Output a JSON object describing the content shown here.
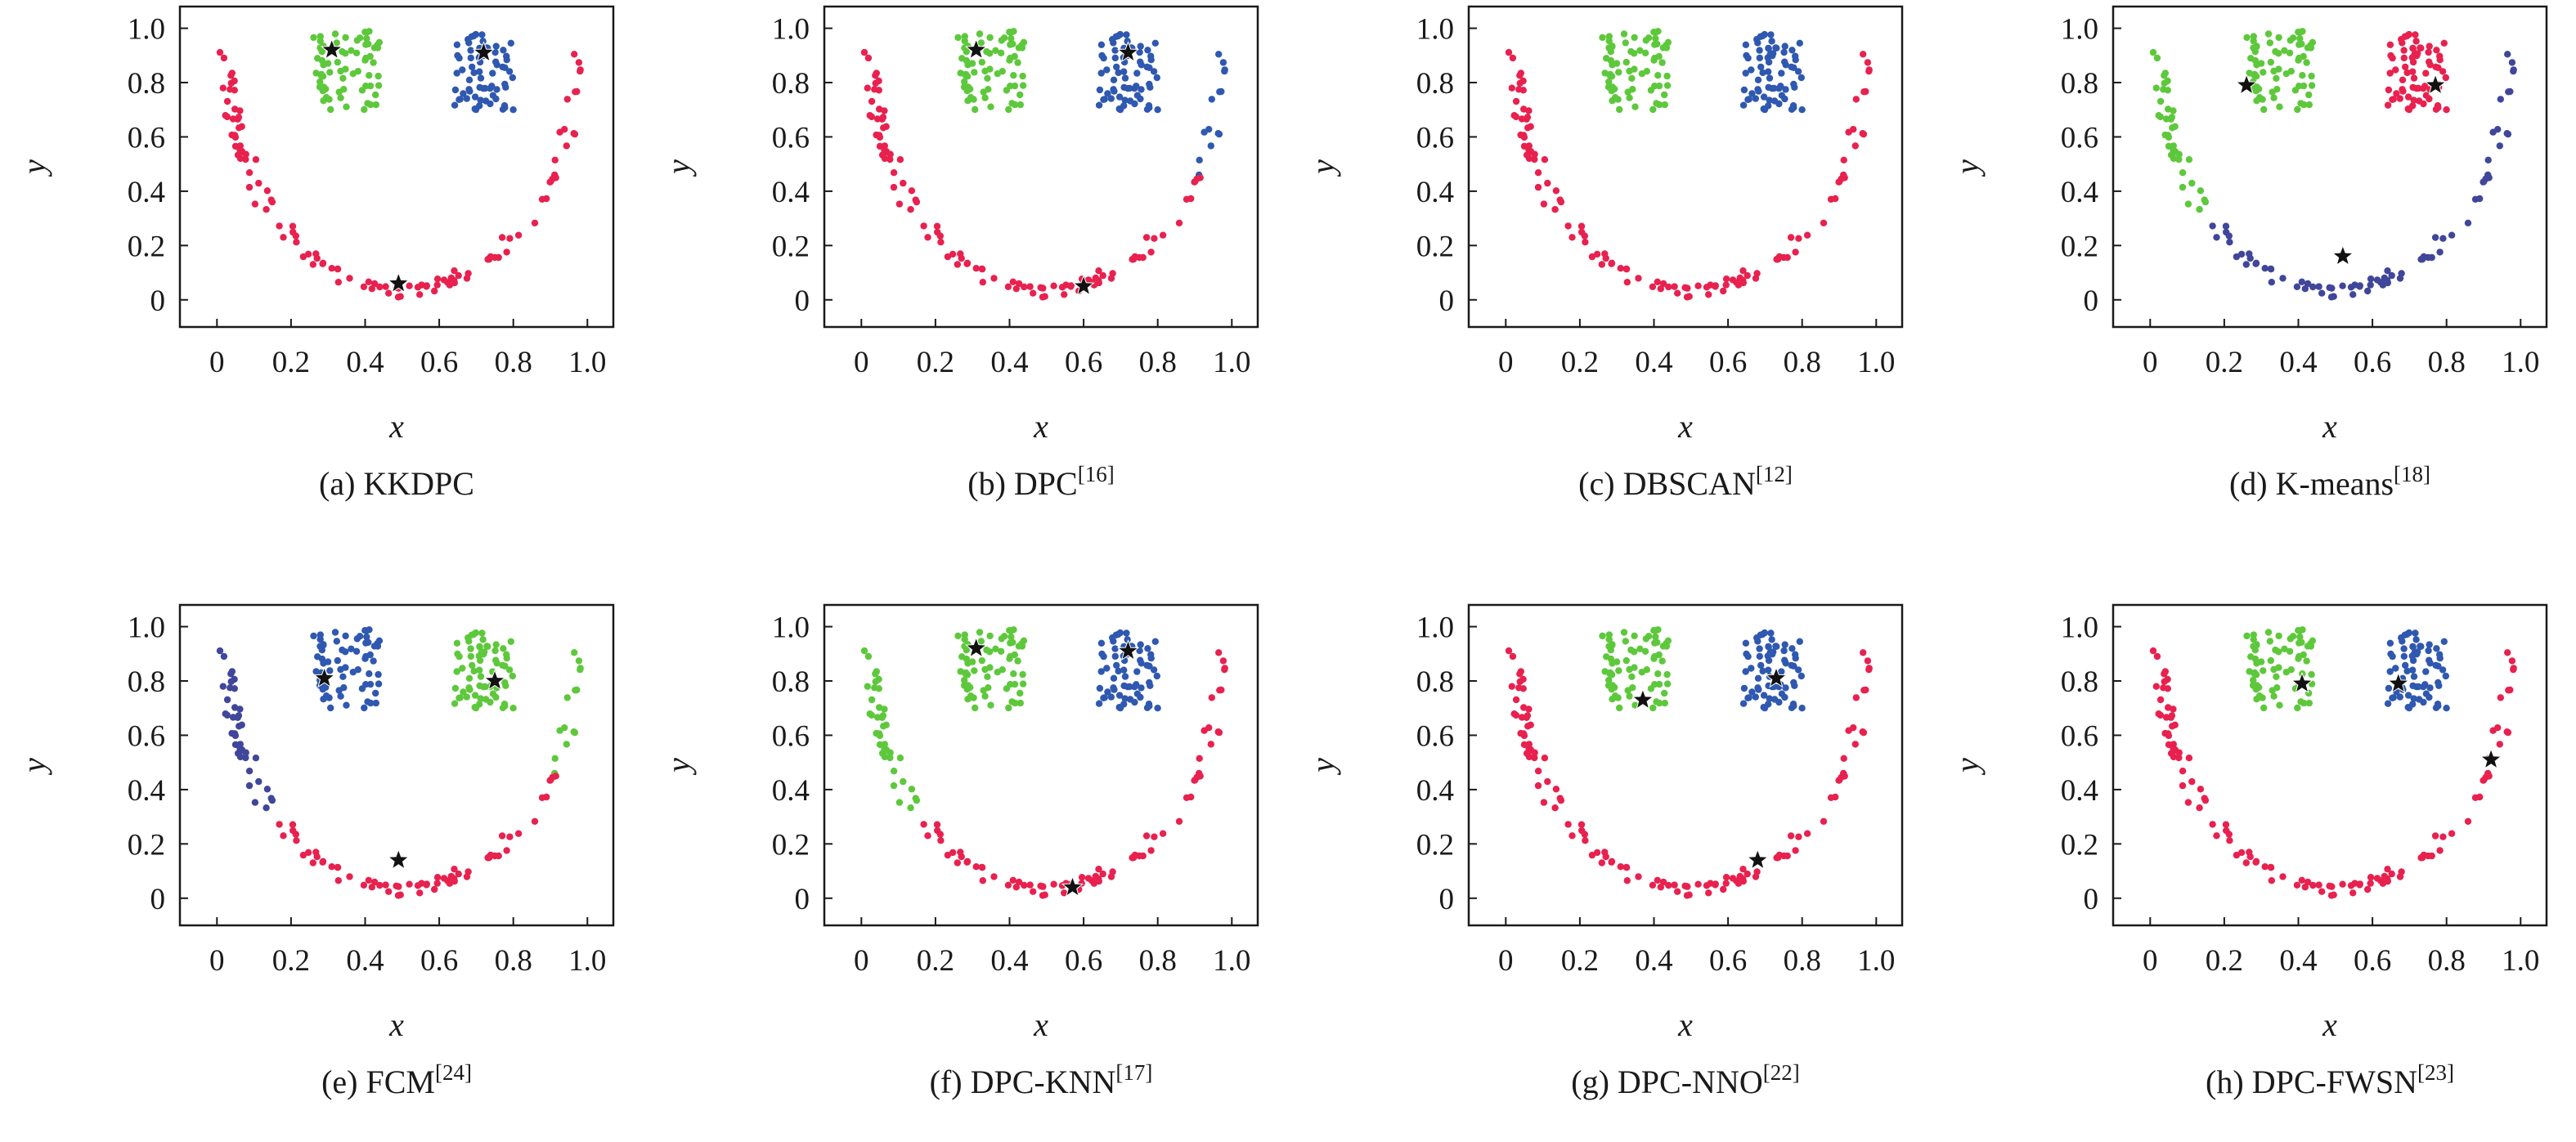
{
  "figure": {
    "axis": {
      "xlabel": "x",
      "ylabel": "y",
      "xticks": [
        "0",
        "0.2",
        "0.4",
        "0.6",
        "0.8",
        "1.0"
      ],
      "yticks": [
        "0",
        "0.2",
        "0.4",
        "0.6",
        "0.8",
        "1.0"
      ],
      "xlim": [
        -0.1,
        1.07
      ],
      "ylim": [
        -0.1,
        1.08
      ],
      "grid": false
    },
    "cluster_colors": {
      "red": "#e8214f",
      "green": "#5ec83c",
      "blue": "#2f58b0",
      "navy": "#40469a",
      "star": "#111111"
    }
  },
  "chart_data": [
    {
      "type": "scatter",
      "caption": "(a) KKDPC",
      "caption_main": "(a) KKDPC",
      "caption_ref": "",
      "xlabel": "x",
      "ylabel": "y",
      "xlim": [
        -0.1,
        1.07
      ],
      "ylim": [
        -0.1,
        1.08
      ],
      "clusters": {
        "smile": "red",
        "left_eye": "green",
        "right_eye": "blue"
      },
      "centers": [
        [
          0.31,
          0.92
        ],
        [
          0.72,
          0.91
        ],
        [
          0.49,
          0.06
        ]
      ]
    },
    {
      "type": "scatter",
      "caption": "(b) DPC[16]",
      "caption_main": "(b) DPC",
      "caption_ref": "[16]",
      "xlabel": "x",
      "ylabel": "y",
      "xlim": [
        -0.1,
        1.07
      ],
      "ylim": [
        -0.1,
        1.08
      ],
      "clusters": {
        "smile": "red",
        "smile_right_arm": "blue",
        "left_eye": "green",
        "right_eye": "blue"
      },
      "centers": [
        [
          0.31,
          0.92
        ],
        [
          0.72,
          0.91
        ],
        [
          0.6,
          0.05
        ]
      ]
    },
    {
      "type": "scatter",
      "caption": "(c) DBSCAN[12]",
      "caption_main": "(c) DBSCAN",
      "caption_ref": "[12]",
      "xlabel": "x",
      "ylabel": "y",
      "xlim": [
        -0.1,
        1.07
      ],
      "ylim": [
        -0.1,
        1.08
      ],
      "clusters": {
        "smile": "red",
        "left_eye": "green",
        "right_eye": "blue"
      },
      "centers": []
    },
    {
      "type": "scatter",
      "caption": "(d) K-means[18]",
      "caption_main": "(d) K-means",
      "caption_ref": "[18]",
      "xlabel": "x",
      "ylabel": "y",
      "xlim": [
        -0.1,
        1.07
      ],
      "ylim": [
        -0.1,
        1.08
      ],
      "clusters": {
        "smile_bottom": "navy",
        "smile_left_arm": "green",
        "left_eye": "green",
        "right_eye": "red"
      },
      "centers": [
        [
          0.26,
          0.79
        ],
        [
          0.77,
          0.79
        ],
        [
          0.52,
          0.16
        ]
      ]
    },
    {
      "type": "scatter",
      "caption": "(e) FCM[24]",
      "caption_main": "(e) FCM",
      "caption_ref": "[24]",
      "xlabel": "x",
      "ylabel": "y",
      "xlim": [
        -0.1,
        1.07
      ],
      "ylim": [
        -0.1,
        1.08
      ],
      "clusters": {
        "smile": "red",
        "smile_left_arm": "navy",
        "smile_right_arm": "green",
        "left_eye": "blue",
        "right_eye": "green"
      },
      "centers": [
        [
          0.29,
          0.81
        ],
        [
          0.75,
          0.8
        ],
        [
          0.49,
          0.14
        ]
      ]
    },
    {
      "type": "scatter",
      "caption": "(f) DPC-KNN[17]",
      "caption_main": "(f) DPC-KNN",
      "caption_ref": "[17]",
      "xlabel": "x",
      "ylabel": "y",
      "xlim": [
        -0.1,
        1.07
      ],
      "ylim": [
        -0.1,
        1.08
      ],
      "clusters": {
        "smile": "red",
        "smile_left_arm": "green",
        "left_eye": "green",
        "right_eye": "blue"
      },
      "centers": [
        [
          0.31,
          0.92
        ],
        [
          0.72,
          0.91
        ],
        [
          0.57,
          0.04
        ]
      ]
    },
    {
      "type": "scatter",
      "caption": "(g) DPC-NNO[22]",
      "caption_main": "(g) DPC-NNO",
      "caption_ref": "[22]",
      "xlabel": "x",
      "ylabel": "y",
      "xlim": [
        -0.1,
        1.07
      ],
      "ylim": [
        -0.1,
        1.08
      ],
      "clusters": {
        "smile": "red",
        "left_eye": "green",
        "right_eye": "blue"
      },
      "centers": [
        [
          0.37,
          0.73
        ],
        [
          0.73,
          0.81
        ],
        [
          0.68,
          0.14
        ]
      ]
    },
    {
      "type": "scatter",
      "caption": "(h) DPC-FWSN[23]",
      "caption_main": "(h) DPC-FWSN",
      "caption_ref": "[23]",
      "xlabel": "x",
      "ylabel": "y",
      "xlim": [
        -0.1,
        1.07
      ],
      "ylim": [
        -0.1,
        1.08
      ],
      "clusters": {
        "smile": "red",
        "left_eye": "green",
        "right_eye": "blue"
      },
      "centers": [
        [
          0.41,
          0.79
        ],
        [
          0.67,
          0.79
        ],
        [
          0.92,
          0.51
        ]
      ]
    }
  ]
}
